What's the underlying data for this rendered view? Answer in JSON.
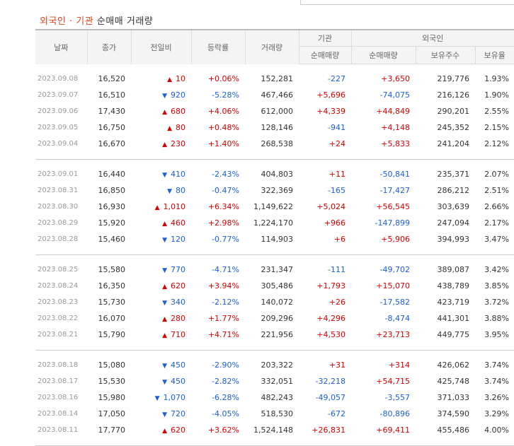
{
  "section": {
    "title_highlight": "외국인 · 기관",
    "title_rest": "순매매 거래량"
  },
  "headers": {
    "date": "날짜",
    "close": "종가",
    "change": "전일비",
    "rate": "등락률",
    "volume": "거래량",
    "inst_group": "기관",
    "foreign_group": "외국인",
    "inst_net": "순매매량",
    "foreign_net": "순매매량",
    "holdings": "보유주수",
    "ratio": "보유율"
  },
  "groups": [
    [
      {
        "date": "2023.09.08",
        "close": "16,520",
        "dir": "up",
        "change": "10",
        "rate": "+0.06%",
        "volume": "152,281",
        "inst": "-227",
        "foreign": "+3,650",
        "holdings": "219,776",
        "ratio": "1.93%"
      },
      {
        "date": "2023.09.07",
        "close": "16,510",
        "dir": "down",
        "change": "920",
        "rate": "-5.28%",
        "volume": "467,466",
        "inst": "+5,696",
        "foreign": "-74,075",
        "holdings": "216,126",
        "ratio": "1.90%"
      },
      {
        "date": "2023.09.06",
        "close": "17,430",
        "dir": "up",
        "change": "680",
        "rate": "+4.06%",
        "volume": "612,000",
        "inst": "+4,339",
        "foreign": "+44,849",
        "holdings": "290,201",
        "ratio": "2.55%"
      },
      {
        "date": "2023.09.05",
        "close": "16,750",
        "dir": "up",
        "change": "80",
        "rate": "+0.48%",
        "volume": "128,146",
        "inst": "-941",
        "foreign": "+4,148",
        "holdings": "245,352",
        "ratio": "2.15%"
      },
      {
        "date": "2023.09.04",
        "close": "16,670",
        "dir": "up",
        "change": "230",
        "rate": "+1.40%",
        "volume": "268,538",
        "inst": "+24",
        "foreign": "+5,833",
        "holdings": "241,204",
        "ratio": "2.12%"
      }
    ],
    [
      {
        "date": "2023.09.01",
        "close": "16,440",
        "dir": "down",
        "change": "410",
        "rate": "-2.43%",
        "volume": "404,803",
        "inst": "+11",
        "foreign": "-50,841",
        "holdings": "235,371",
        "ratio": "2.07%"
      },
      {
        "date": "2023.08.31",
        "close": "16,850",
        "dir": "down",
        "change": "80",
        "rate": "-0.47%",
        "volume": "322,369",
        "inst": "-165",
        "foreign": "-17,427",
        "holdings": "286,212",
        "ratio": "2.51%"
      },
      {
        "date": "2023.08.30",
        "close": "16,930",
        "dir": "up",
        "change": "1,010",
        "rate": "+6.34%",
        "volume": "1,149,622",
        "inst": "+5,024",
        "foreign": "+56,545",
        "holdings": "303,639",
        "ratio": "2.66%"
      },
      {
        "date": "2023.08.29",
        "close": "15,920",
        "dir": "up",
        "change": "460",
        "rate": "+2.98%",
        "volume": "1,224,170",
        "inst": "+966",
        "foreign": "-147,899",
        "holdings": "247,094",
        "ratio": "2.17%"
      },
      {
        "date": "2023.08.28",
        "close": "15,460",
        "dir": "down",
        "change": "120",
        "rate": "-0.77%",
        "volume": "114,903",
        "inst": "+6",
        "foreign": "+5,906",
        "holdings": "394,993",
        "ratio": "3.47%"
      }
    ],
    [
      {
        "date": "2023.08.25",
        "close": "15,580",
        "dir": "down",
        "change": "770",
        "rate": "-4.71%",
        "volume": "231,347",
        "inst": "-111",
        "foreign": "-49,702",
        "holdings": "389,087",
        "ratio": "3.42%"
      },
      {
        "date": "2023.08.24",
        "close": "16,350",
        "dir": "up",
        "change": "620",
        "rate": "+3.94%",
        "volume": "305,486",
        "inst": "+1,793",
        "foreign": "+15,070",
        "holdings": "438,789",
        "ratio": "3.85%"
      },
      {
        "date": "2023.08.23",
        "close": "15,730",
        "dir": "down",
        "change": "340",
        "rate": "-2.12%",
        "volume": "140,072",
        "inst": "+26",
        "foreign": "-17,582",
        "holdings": "423,719",
        "ratio": "3.72%"
      },
      {
        "date": "2023.08.22",
        "close": "16,070",
        "dir": "up",
        "change": "280",
        "rate": "+1.77%",
        "volume": "209,296",
        "inst": "+4,296",
        "foreign": "-8,474",
        "holdings": "441,301",
        "ratio": "3.88%"
      },
      {
        "date": "2023.08.21",
        "close": "15,790",
        "dir": "up",
        "change": "710",
        "rate": "+4.71%",
        "volume": "221,956",
        "inst": "+4,530",
        "foreign": "+23,713",
        "holdings": "449,775",
        "ratio": "3.95%"
      }
    ],
    [
      {
        "date": "2023.08.18",
        "close": "15,080",
        "dir": "down",
        "change": "450",
        "rate": "-2.90%",
        "volume": "203,322",
        "inst": "+31",
        "foreign": "+314",
        "holdings": "426,062",
        "ratio": "3.74%"
      },
      {
        "date": "2023.08.17",
        "close": "15,530",
        "dir": "down",
        "change": "450",
        "rate": "-2.82%",
        "volume": "332,051",
        "inst": "-32,218",
        "foreign": "+54,715",
        "holdings": "425,748",
        "ratio": "3.74%"
      },
      {
        "date": "2023.08.16",
        "close": "15,980",
        "dir": "down",
        "change": "1,070",
        "rate": "-6.28%",
        "volume": "482,243",
        "inst": "-49,057",
        "foreign": "-3,557",
        "holdings": "371,033",
        "ratio": "3.26%"
      },
      {
        "date": "2023.08.14",
        "close": "17,050",
        "dir": "down",
        "change": "720",
        "rate": "-4.05%",
        "volume": "518,530",
        "inst": "-672",
        "foreign": "-80,896",
        "holdings": "374,590",
        "ratio": "3.29%"
      },
      {
        "date": "2023.08.11",
        "close": "17,770",
        "dir": "up",
        "change": "620",
        "rate": "+3.62%",
        "volume": "1,524,148",
        "inst": "+26,831",
        "foreign": "+69,411",
        "holdings": "455,486",
        "ratio": "4.00%"
      }
    ]
  ]
}
